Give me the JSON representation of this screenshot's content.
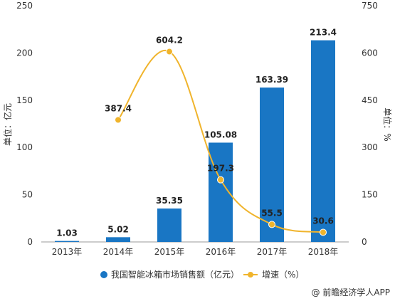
{
  "colors": {
    "bar": "#1976c4",
    "line": "#f0b42c",
    "marker": "#f0b42c",
    "axis": "#999999"
  },
  "credit": {
    "icon": "at-icon",
    "text": "@ 前瞻经济学人APP"
  },
  "chart_data": {
    "type": "bar",
    "categories": [
      "2013年",
      "2014年",
      "2015年",
      "2016年",
      "2017年",
      "2018年"
    ],
    "series": [
      {
        "name": "我国智能冰箱市场销售额（亿元）",
        "type": "bar",
        "axis": "left",
        "values": [
          1.03,
          5.02,
          35.35,
          105.08,
          163.39,
          213.4
        ],
        "labels": [
          "1.03",
          "5.02",
          "35.35",
          "105.08",
          "163.39",
          "213.4"
        ]
      },
      {
        "name": "增速（%）",
        "type": "line",
        "axis": "right",
        "values": [
          null,
          387.4,
          604.2,
          197.3,
          55.5,
          30.6
        ],
        "labels": [
          "",
          "387.4",
          "604.2",
          "197.3",
          "55.5",
          "30.6"
        ]
      }
    ],
    "ylabel": "单位：亿元",
    "ylabel_right": "单位：%",
    "ylim": [
      0,
      250
    ],
    "ylim_right": [
      0,
      750
    ],
    "yticks": [
      "0",
      "50",
      "100",
      "150",
      "200",
      "250"
    ],
    "yticks_right": [
      "0",
      "150",
      "300",
      "450",
      "600",
      "750"
    ],
    "grid": false,
    "legend": "bottom"
  }
}
